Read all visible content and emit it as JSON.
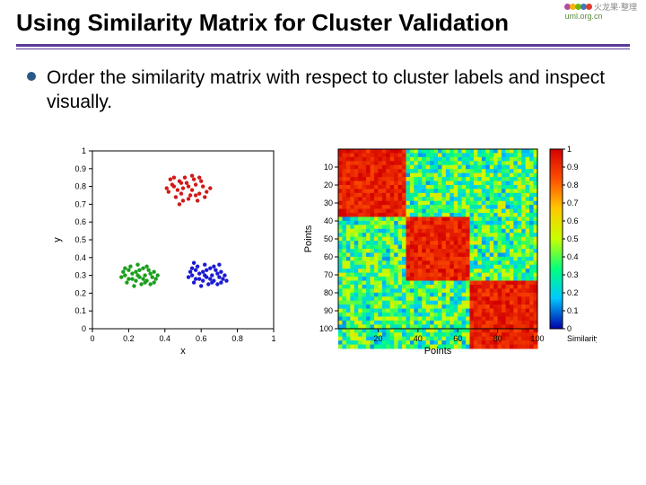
{
  "title": "Using Similarity Matrix for Cluster Validation",
  "logo": {
    "top_text": "火龙果·整理",
    "bottom_text": "uml.org.cn",
    "dot_colors": [
      "#b84a9c",
      "#f2b705",
      "#7ab800",
      "#3a7bbf",
      "#e03c31"
    ]
  },
  "rule": {
    "color": "#5b3a9b"
  },
  "bullet": {
    "dot_color": "#2a5a8a",
    "text": "Order the similarity matrix with respect to cluster labels and inspect visually."
  },
  "scatter": {
    "type": "scatter",
    "xlabel": "x",
    "ylabel": "y",
    "xlim": [
      0,
      1
    ],
    "ylim": [
      0,
      1
    ],
    "xticks": [
      0,
      0.2,
      0.4,
      0.6,
      0.8,
      1
    ],
    "yticks": [
      0,
      0.1,
      0.2,
      0.3,
      0.4,
      0.5,
      0.6,
      0.7,
      0.8,
      0.9,
      1
    ],
    "axis_color": "#000000",
    "label_fontsize": 11,
    "tick_fontsize": 9,
    "marker_size": 2.2,
    "clusters": [
      {
        "color": "#d11919",
        "points": [
          [
            0.42,
            0.77
          ],
          [
            0.45,
            0.8
          ],
          [
            0.48,
            0.83
          ],
          [
            0.5,
            0.79
          ],
          [
            0.52,
            0.82
          ],
          [
            0.55,
            0.78
          ],
          [
            0.57,
            0.81
          ],
          [
            0.59,
            0.76
          ],
          [
            0.61,
            0.8
          ],
          [
            0.63,
            0.77
          ],
          [
            0.46,
            0.74
          ],
          [
            0.49,
            0.76
          ],
          [
            0.53,
            0.73
          ],
          [
            0.56,
            0.84
          ],
          [
            0.58,
            0.72
          ],
          [
            0.6,
            0.83
          ],
          [
            0.62,
            0.74
          ],
          [
            0.44,
            0.81
          ],
          [
            0.47,
            0.78
          ],
          [
            0.51,
            0.85
          ],
          [
            0.54,
            0.75
          ],
          [
            0.43,
            0.84
          ],
          [
            0.65,
            0.79
          ],
          [
            0.41,
            0.79
          ],
          [
            0.5,
            0.72
          ],
          [
            0.55,
            0.86
          ],
          [
            0.48,
            0.7
          ],
          [
            0.59,
            0.85
          ],
          [
            0.45,
            0.85
          ],
          [
            0.53,
            0.8
          ],
          [
            0.57,
            0.75
          ],
          [
            0.49,
            0.82
          ]
        ]
      },
      {
        "color": "#1a9e1a",
        "points": [
          [
            0.18,
            0.3
          ],
          [
            0.2,
            0.33
          ],
          [
            0.22,
            0.28
          ],
          [
            0.24,
            0.32
          ],
          [
            0.26,
            0.29
          ],
          [
            0.28,
            0.34
          ],
          [
            0.3,
            0.27
          ],
          [
            0.32,
            0.31
          ],
          [
            0.34,
            0.26
          ],
          [
            0.19,
            0.26
          ],
          [
            0.21,
            0.35
          ],
          [
            0.23,
            0.24
          ],
          [
            0.25,
            0.36
          ],
          [
            0.27,
            0.25
          ],
          [
            0.29,
            0.3
          ],
          [
            0.31,
            0.33
          ],
          [
            0.33,
            0.29
          ],
          [
            0.17,
            0.32
          ],
          [
            0.35,
            0.28
          ],
          [
            0.22,
            0.31
          ],
          [
            0.26,
            0.33
          ],
          [
            0.3,
            0.35
          ],
          [
            0.2,
            0.28
          ],
          [
            0.24,
            0.27
          ],
          [
            0.28,
            0.28
          ],
          [
            0.32,
            0.25
          ],
          [
            0.18,
            0.34
          ],
          [
            0.34,
            0.32
          ],
          [
            0.16,
            0.29
          ],
          [
            0.36,
            0.3
          ],
          [
            0.25,
            0.3
          ],
          [
            0.29,
            0.26
          ]
        ]
      },
      {
        "color": "#1a1ad1",
        "points": [
          [
            0.55,
            0.3
          ],
          [
            0.57,
            0.33
          ],
          [
            0.59,
            0.28
          ],
          [
            0.61,
            0.32
          ],
          [
            0.63,
            0.29
          ],
          [
            0.65,
            0.34
          ],
          [
            0.67,
            0.27
          ],
          [
            0.69,
            0.31
          ],
          [
            0.71,
            0.26
          ],
          [
            0.56,
            0.26
          ],
          [
            0.58,
            0.35
          ],
          [
            0.6,
            0.24
          ],
          [
            0.62,
            0.36
          ],
          [
            0.64,
            0.25
          ],
          [
            0.66,
            0.3
          ],
          [
            0.68,
            0.33
          ],
          [
            0.7,
            0.29
          ],
          [
            0.54,
            0.32
          ],
          [
            0.72,
            0.28
          ],
          [
            0.59,
            0.31
          ],
          [
            0.63,
            0.33
          ],
          [
            0.67,
            0.35
          ],
          [
            0.57,
            0.28
          ],
          [
            0.61,
            0.27
          ],
          [
            0.65,
            0.28
          ],
          [
            0.69,
            0.25
          ],
          [
            0.55,
            0.34
          ],
          [
            0.71,
            0.32
          ],
          [
            0.53,
            0.29
          ],
          [
            0.73,
            0.3
          ],
          [
            0.62,
            0.3
          ],
          [
            0.66,
            0.26
          ],
          [
            0.74,
            0.27
          ],
          [
            0.56,
            0.37
          ],
          [
            0.7,
            0.36
          ]
        ]
      }
    ]
  },
  "heatmap": {
    "type": "heatmap",
    "xlabel": "Points",
    "ylabel": "Points",
    "cbar_label": "Similarity",
    "axis_range": [
      0,
      100
    ],
    "xticks": [
      20,
      40,
      60,
      80,
      100
    ],
    "yticks": [
      10,
      20,
      30,
      40,
      50,
      60,
      70,
      80,
      90,
      100
    ],
    "cbar_ticks": [
      0,
      0.1,
      0.2,
      0.3,
      0.4,
      0.5,
      0.6,
      0.7,
      0.8,
      0.9,
      1
    ],
    "label_fontsize": 11,
    "tick_fontsize": 9,
    "colormap_stops": [
      [
        0.0,
        "#0000aa"
      ],
      [
        0.17,
        "#00c8ff"
      ],
      [
        0.33,
        "#00ff80"
      ],
      [
        0.5,
        "#c8ff00"
      ],
      [
        0.67,
        "#ffc800"
      ],
      [
        0.83,
        "#ff5000"
      ],
      [
        1.0,
        "#d40000"
      ]
    ],
    "block_bounds": [
      0,
      33,
      66,
      100
    ],
    "diag_value": 1.0,
    "off_value_mean": 0.35
  }
}
